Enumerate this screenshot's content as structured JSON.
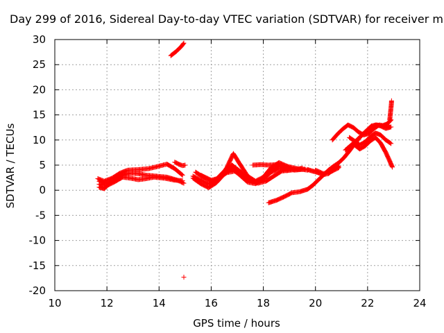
{
  "chart_data": {
    "type": "scatter",
    "title": "Day 299 of 2016, Sidereal Day-to-day VTEC variation (SDTVAR) for receiver m",
    "xlabel": "GPS time / hours",
    "ylabel": "SDTVAR / TECUs",
    "xlim": [
      10,
      24
    ],
    "ylim": [
      -20,
      30
    ],
    "xticks": [
      "10",
      "12",
      "14",
      "16",
      "18",
      "20",
      "22",
      "24"
    ],
    "yticks": [
      "30",
      "25",
      "20",
      "15",
      "10",
      "5",
      "0",
      "-5",
      "-10",
      "-15",
      "-20"
    ],
    "grid": true,
    "marker": "+",
    "color": "#ff0000",
    "series": [
      {
        "tracks": [
          [
            [
              11.65,
              2.3
            ],
            [
              11.9,
              1.8
            ],
            [
              12.2,
              2.4
            ],
            [
              12.5,
              3.4
            ],
            [
              12.8,
              4.0
            ],
            [
              13.2,
              4.1
            ],
            [
              13.6,
              4.3
            ],
            [
              14.0,
              4.8
            ],
            [
              14.3,
              5.2
            ],
            [
              14.6,
              4.3
            ],
            [
              14.9,
              3.0
            ]
          ],
          [
            [
              11.7,
              1.8
            ],
            [
              12.0,
              1.3
            ],
            [
              12.3,
              2.0
            ],
            [
              12.6,
              3.0
            ],
            [
              12.9,
              3.4
            ],
            [
              13.2,
              3.3
            ],
            [
              13.5,
              3.0
            ],
            [
              13.9,
              2.8
            ],
            [
              14.3,
              2.6
            ],
            [
              14.7,
              2.0
            ],
            [
              14.95,
              1.4
            ]
          ],
          [
            [
              11.7,
              1.2
            ],
            [
              12.0,
              0.9
            ],
            [
              12.3,
              1.7
            ],
            [
              12.6,
              2.6
            ],
            [
              12.9,
              2.4
            ],
            [
              13.2,
              2.1
            ],
            [
              13.5,
              2.3
            ],
            [
              13.8,
              2.6
            ],
            [
              14.2,
              2.4
            ],
            [
              14.6,
              2.0
            ],
            [
              14.9,
              1.9
            ]
          ],
          [
            [
              11.7,
              0.6
            ],
            [
              11.9,
              0.3
            ],
            [
              12.0,
              0.9
            ]
          ],
          [
            [
              14.6,
              5.6
            ],
            [
              14.75,
              5.2
            ],
            [
              14.9,
              4.9
            ],
            [
              15.0,
              5.0
            ]
          ],
          [
            [
              14.45,
              26.8
            ],
            [
              14.65,
              27.6
            ],
            [
              14.85,
              28.6
            ],
            [
              14.95,
              29.3
            ]
          ],
          [
            [
              15.4,
              3.6
            ],
            [
              15.7,
              2.6
            ],
            [
              16.0,
              1.8
            ],
            [
              16.3,
              2.3
            ],
            [
              16.6,
              4.5
            ],
            [
              16.85,
              7.3
            ],
            [
              17.1,
              5.2
            ],
            [
              17.4,
              2.8
            ],
            [
              17.7,
              1.8
            ],
            [
              18.0,
              2.6
            ],
            [
              18.3,
              4.5
            ],
            [
              18.6,
              5.5
            ],
            [
              18.9,
              4.8
            ],
            [
              19.3,
              4.3
            ],
            [
              19.7,
              4.0
            ]
          ],
          [
            [
              15.3,
              2.8
            ],
            [
              15.6,
              2.0
            ],
            [
              15.9,
              1.2
            ],
            [
              16.2,
              2.2
            ],
            [
              16.5,
              3.8
            ],
            [
              16.8,
              5.0
            ],
            [
              17.1,
              3.8
            ],
            [
              17.4,
              2.3
            ],
            [
              17.7,
              1.6
            ],
            [
              18.0,
              2.3
            ],
            [
              18.3,
              3.8
            ],
            [
              18.6,
              4.8
            ],
            [
              18.9,
              4.3
            ],
            [
              19.2,
              4.0
            ],
            [
              19.6,
              4.2
            ]
          ],
          [
            [
              15.3,
              2.4
            ],
            [
              15.6,
              1.3
            ],
            [
              15.9,
              0.5
            ],
            [
              16.2,
              1.5
            ],
            [
              16.5,
              3.2
            ],
            [
              16.8,
              4.3
            ],
            [
              17.1,
              3.0
            ],
            [
              17.4,
              1.6
            ],
            [
              17.7,
              1.3
            ],
            [
              18.0,
              2.2
            ],
            [
              18.3,
              3.6
            ],
            [
              18.6,
              4.3
            ],
            [
              18.9,
              3.9
            ],
            [
              19.2,
              4.1
            ],
            [
              19.5,
              4.4
            ]
          ],
          [
            [
              15.6,
              3.0
            ],
            [
              15.8,
              2.5
            ],
            [
              16.0,
              2.0
            ],
            [
              16.3,
              2.4
            ],
            [
              16.6,
              3.5
            ],
            [
              16.9,
              3.8
            ],
            [
              17.2,
              2.8
            ],
            [
              17.5,
              1.8
            ],
            [
              17.8,
              1.4
            ],
            [
              18.1,
              1.8
            ],
            [
              18.4,
              2.8
            ],
            [
              18.7,
              3.8
            ],
            [
              19.0,
              4.0
            ]
          ],
          [
            [
              17.6,
              5.0
            ],
            [
              17.9,
              5.1
            ],
            [
              18.2,
              5.0
            ],
            [
              18.5,
              5.1
            ],
            [
              18.8,
              4.8
            ],
            [
              19.1,
              4.3
            ],
            [
              19.4,
              4.1
            ]
          ],
          [
            [
              18.2,
              -2.5
            ],
            [
              18.5,
              -2.0
            ],
            [
              18.8,
              -1.3
            ],
            [
              19.1,
              -0.5
            ],
            [
              19.4,
              -0.3
            ],
            [
              19.7,
              0.2
            ],
            [
              19.9,
              1.0
            ],
            [
              20.1,
              2.0
            ],
            [
              20.3,
              3.0
            ],
            [
              20.5,
              4.0
            ],
            [
              20.7,
              4.8
            ],
            [
              20.9,
              5.5
            ],
            [
              21.1,
              6.5
            ],
            [
              21.3,
              7.8
            ],
            [
              21.5,
              9.2
            ],
            [
              21.7,
              10.5
            ],
            [
              21.9,
              11.6
            ],
            [
              22.1,
              12.5
            ],
            [
              22.3,
              13.0
            ],
            [
              22.5,
              12.8
            ],
            [
              22.7,
              12.3
            ],
            [
              22.9,
              12.6
            ]
          ],
          [
            [
              19.7,
              4.1
            ],
            [
              19.9,
              3.8
            ],
            [
              20.1,
              3.5
            ],
            [
              20.3,
              3.1
            ],
            [
              20.5,
              3.3
            ],
            [
              20.7,
              4.2
            ],
            [
              20.9,
              4.8
            ]
          ],
          [
            [
              20.0,
              4.0
            ],
            [
              20.3,
              3.3
            ],
            [
              20.6,
              3.7
            ],
            [
              20.9,
              4.5
            ]
          ],
          [
            [
              20.65,
              10.0
            ],
            [
              20.85,
              11.2
            ],
            [
              21.05,
              12.2
            ],
            [
              21.25,
              13.0
            ],
            [
              21.45,
              12.5
            ],
            [
              21.65,
              11.6
            ],
            [
              21.85,
              11.0
            ],
            [
              22.05,
              11.3
            ],
            [
              22.25,
              12.3
            ],
            [
              22.45,
              13.0
            ],
            [
              22.65,
              12.8
            ],
            [
              22.85,
              12.6
            ]
          ],
          [
            [
              21.15,
              8.0
            ],
            [
              21.35,
              8.9
            ],
            [
              21.55,
              9.8
            ],
            [
              21.75,
              10.8
            ],
            [
              21.95,
              11.8
            ],
            [
              22.15,
              12.8
            ],
            [
              22.35,
              13.0
            ],
            [
              22.55,
              12.8
            ],
            [
              22.75,
              13.2
            ],
            [
              22.9,
              14.0
            ]
          ],
          [
            [
              21.3,
              10.5
            ],
            [
              21.5,
              9.8
            ],
            [
              21.7,
              9.0
            ],
            [
              21.9,
              9.6
            ],
            [
              22.1,
              10.6
            ],
            [
              22.3,
              11.4
            ],
            [
              22.5,
              11.0
            ],
            [
              22.7,
              10.0
            ],
            [
              22.9,
              9.3
            ]
          ],
          [
            [
              21.5,
              9.0
            ],
            [
              21.7,
              8.2
            ],
            [
              21.9,
              8.8
            ],
            [
              22.1,
              9.8
            ],
            [
              22.3,
              10.5
            ],
            [
              22.5,
              9.4
            ],
            [
              22.7,
              7.5
            ],
            [
              22.85,
              5.8
            ],
            [
              22.95,
              4.6
            ]
          ],
          [
            [
              22.85,
              14.0
            ],
            [
              22.87,
              15.0
            ],
            [
              22.89,
              16.0
            ],
            [
              22.91,
              17.0
            ],
            [
              22.92,
              17.8
            ]
          ],
          [
            [
              14.95,
              -17.3
            ]
          ]
        ]
      }
    ]
  }
}
